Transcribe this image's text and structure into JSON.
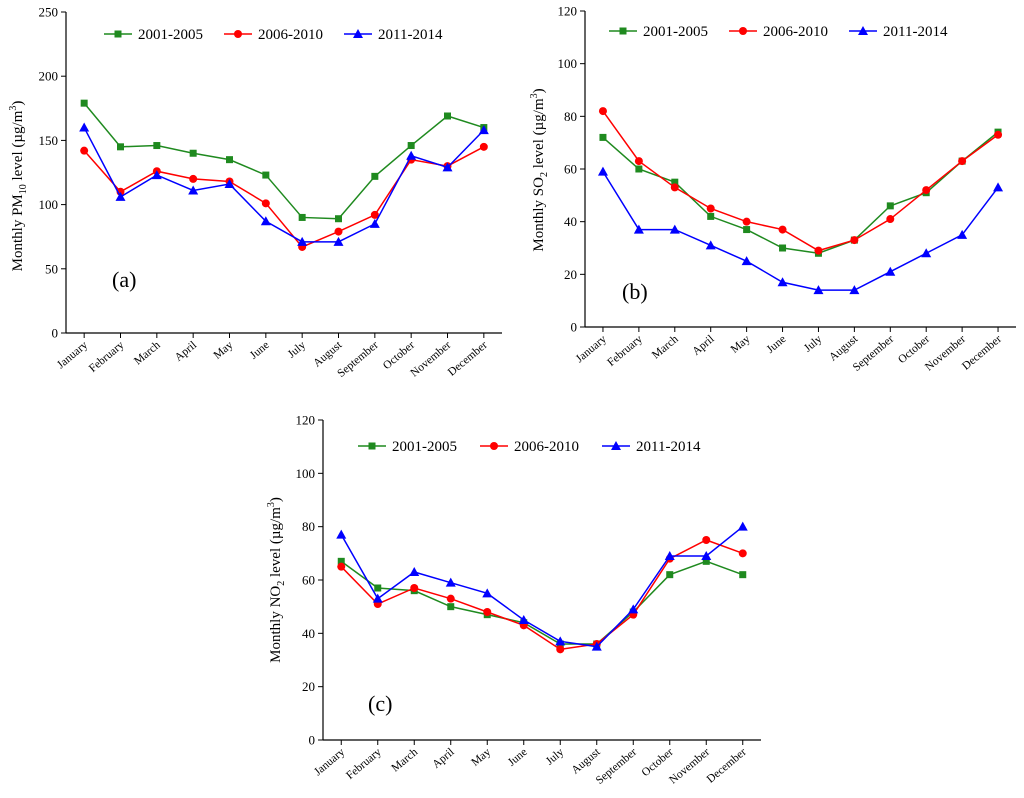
{
  "legend": {
    "series_colors": [
      "#1f8a1f",
      "#ff0000",
      "#0000ff"
    ]
  },
  "chart_data": [
    {
      "type": "line",
      "panel_label": "(a)",
      "ylabel": {
        "pre": "Monthly PM",
        "sub": "10",
        "mid": " level (µg/m",
        "sup": "3",
        "post": ")"
      },
      "ylim": [
        0,
        250
      ],
      "yticks": [
        "0",
        "50",
        "100",
        "150",
        "200",
        "250"
      ],
      "categories": [
        "January",
        "February",
        "March",
        "April",
        "May",
        "June",
        "July",
        "August",
        "September",
        "October",
        "November",
        "December"
      ],
      "series": [
        {
          "name": "2001-2005",
          "marker": "square",
          "color": "#1f8a1f",
          "values": [
            179,
            145,
            146,
            140,
            135,
            123,
            90,
            89,
            122,
            146,
            169,
            160
          ]
        },
        {
          "name": "2006-2010",
          "marker": "circle",
          "color": "#ff0000",
          "values": [
            142,
            110,
            126,
            120,
            118,
            101,
            67,
            79,
            92,
            135,
            130,
            145
          ]
        },
        {
          "name": "2011-2014",
          "marker": "triangle",
          "color": "#0000ff",
          "values": [
            160,
            106,
            123,
            111,
            116,
            87,
            71,
            71,
            85,
            138,
            129,
            158
          ]
        }
      ]
    },
    {
      "type": "line",
      "panel_label": "(b)",
      "ylabel": {
        "pre": "Monthly SO",
        "sub": "2",
        "mid": " level (µg/m",
        "sup": "3",
        "post": ")"
      },
      "ylim": [
        0,
        120
      ],
      "yticks": [
        "0",
        "20",
        "40",
        "60",
        "80",
        "100",
        "120"
      ],
      "categories": [
        "January",
        "February",
        "March",
        "April",
        "May",
        "June",
        "July",
        "August",
        "September",
        "October",
        "November",
        "December"
      ],
      "series": [
        {
          "name": "2001-2005",
          "marker": "square",
          "color": "#1f8a1f",
          "values": [
            72,
            60,
            55,
            42,
            37,
            30,
            28,
            33,
            46,
            51,
            63,
            74
          ]
        },
        {
          "name": "2006-2010",
          "marker": "circle",
          "color": "#ff0000",
          "values": [
            82,
            63,
            53,
            45,
            40,
            37,
            29,
            33,
            41,
            52,
            63,
            73
          ]
        },
        {
          "name": "2011-2014",
          "marker": "triangle",
          "color": "#0000ff",
          "values": [
            59,
            37,
            37,
            31,
            25,
            17,
            14,
            14,
            21,
            28,
            35,
            53
          ]
        }
      ]
    },
    {
      "type": "line",
      "panel_label": "(c)",
      "ylabel": {
        "pre": "Monthly NO",
        "sub": "2",
        "mid": " level (µg/m",
        "sup": "3",
        "post": ")"
      },
      "ylim": [
        0,
        120
      ],
      "yticks": [
        "0",
        "20",
        "40",
        "60",
        "80",
        "100",
        "120"
      ],
      "categories": [
        "January",
        "February",
        "March",
        "April",
        "May",
        "June",
        "July",
        "August",
        "September",
        "October",
        "November",
        "December"
      ],
      "series": [
        {
          "name": "2001-2005",
          "marker": "square",
          "color": "#1f8a1f",
          "values": [
            67,
            57,
            56,
            50,
            47,
            44,
            36,
            36,
            48,
            62,
            67,
            62
          ]
        },
        {
          "name": "2006-2010",
          "marker": "circle",
          "color": "#ff0000",
          "values": [
            65,
            51,
            57,
            53,
            48,
            43,
            34,
            36,
            47,
            68,
            75,
            70
          ]
        },
        {
          "name": "2011-2014",
          "marker": "triangle",
          "color": "#0000ff",
          "values": [
            77,
            53,
            63,
            59,
            55,
            45,
            37,
            35,
            49,
            69,
            69,
            80
          ]
        }
      ]
    }
  ]
}
